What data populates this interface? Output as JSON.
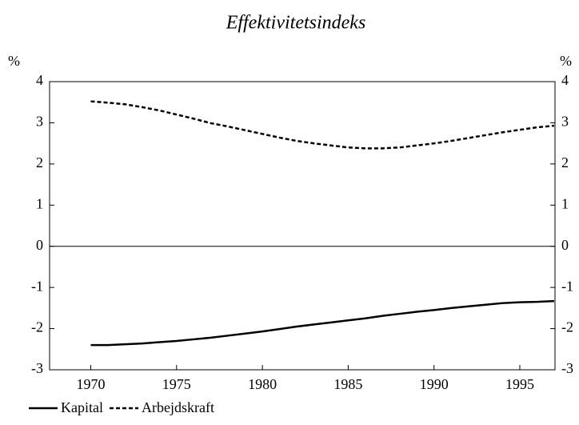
{
  "chart_data": {
    "type": "line",
    "title": "Effektivitetsindeks",
    "y_unit": "%",
    "x": [
      1970,
      1971,
      1972,
      1973,
      1974,
      1975,
      1976,
      1977,
      1978,
      1979,
      1980,
      1981,
      1982,
      1983,
      1984,
      1985,
      1986,
      1987,
      1988,
      1989,
      1990,
      1991,
      1992,
      1993,
      1994,
      1995,
      1996,
      1997
    ],
    "series": [
      {
        "name": "Kapital",
        "color": "#000000",
        "dash": "solid",
        "values": [
          -2.4,
          -2.4,
          -2.38,
          -2.36,
          -2.33,
          -2.3,
          -2.26,
          -2.22,
          -2.17,
          -2.12,
          -2.07,
          -2.01,
          -1.95,
          -1.9,
          -1.85,
          -1.8,
          -1.75,
          -1.69,
          -1.64,
          -1.59,
          -1.55,
          -1.5,
          -1.46,
          -1.42,
          -1.38,
          -1.36,
          -1.35,
          -1.33
        ]
      },
      {
        "name": "Arbejdskraft",
        "color": "#000000",
        "dash": "dashed",
        "values": [
          3.52,
          3.49,
          3.45,
          3.38,
          3.3,
          3.2,
          3.1,
          2.99,
          2.91,
          2.82,
          2.73,
          2.64,
          2.56,
          2.5,
          2.45,
          2.4,
          2.38,
          2.38,
          2.4,
          2.45,
          2.5,
          2.56,
          2.63,
          2.7,
          2.77,
          2.83,
          2.89,
          2.93
        ]
      }
    ],
    "xlim": [
      1967.6,
      1997.05
    ],
    "xticks": [
      1970,
      1975,
      1980,
      1985,
      1990,
      1995
    ],
    "ylim": [
      -3,
      4
    ],
    "yticks": [
      -3,
      -2,
      -1,
      0,
      1,
      2,
      3,
      4
    ],
    "y2lim": [
      -3,
      4
    ],
    "y2ticks": [
      -3,
      -2,
      -1,
      0,
      1,
      2,
      3,
      4
    ],
    "legend": "bottom-left"
  }
}
